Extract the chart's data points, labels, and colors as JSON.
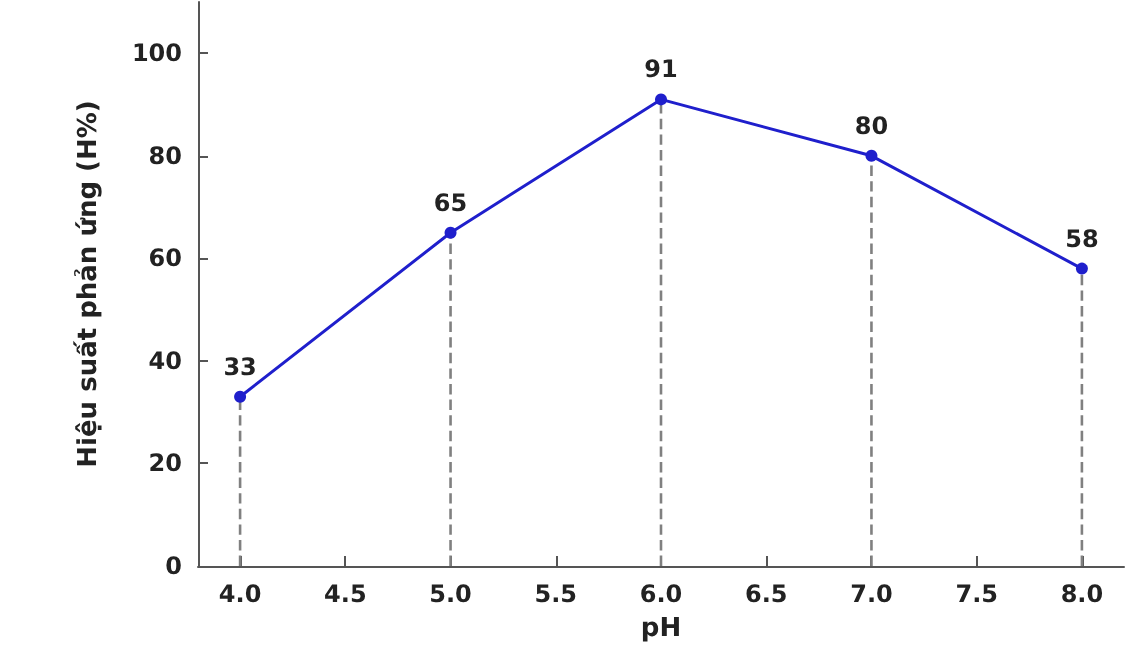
{
  "chart_data": {
    "type": "line",
    "xlabel": "pH",
    "ylabel": "Hiệu suất phản ứng (H%)",
    "x": [
      4.0,
      5.0,
      6.0,
      7.0,
      8.0
    ],
    "series": [
      {
        "color": "#1f1fcc",
        "values": [
          33,
          65,
          91,
          80,
          58
        ]
      }
    ],
    "data_labels": true,
    "marker": "circle",
    "line_style": "solid",
    "grid": false,
    "xlim": [
      3.8,
      8.2
    ],
    "xticks": [
      {
        "value": 4,
        "label": "4.0"
      },
      {
        "value": 4.5,
        "label": "4.5"
      },
      {
        "value": 5,
        "label": "5.0"
      },
      {
        "value": 5.5,
        "label": "5.5"
      },
      {
        "value": 6,
        "label": "6.0"
      },
      {
        "value": 6.5,
        "label": "6.5"
      },
      {
        "value": 7,
        "label": "7.0"
      },
      {
        "value": 7.5,
        "label": "7.5"
      },
      {
        "value": 8,
        "label": "8.0"
      }
    ],
    "ylim": [
      0,
      110
    ],
    "yticks": [
      0,
      20,
      40,
      60,
      80,
      100
    ],
    "ref_lines": [
      {
        "axis": "x",
        "value": 4.0,
        "color": "#808080",
        "line_style": "dashed"
      },
      {
        "axis": "x",
        "value": 5.0,
        "color": "#808080",
        "line_style": "dashed"
      },
      {
        "axis": "x",
        "value": 6.0,
        "color": "#808080",
        "line_style": "dashed"
      },
      {
        "axis": "x",
        "value": 7.0,
        "color": "#808080",
        "line_style": "dashed"
      },
      {
        "axis": "x",
        "value": 8.0,
        "color": "#808080",
        "line_style": "dashed"
      }
    ]
  }
}
